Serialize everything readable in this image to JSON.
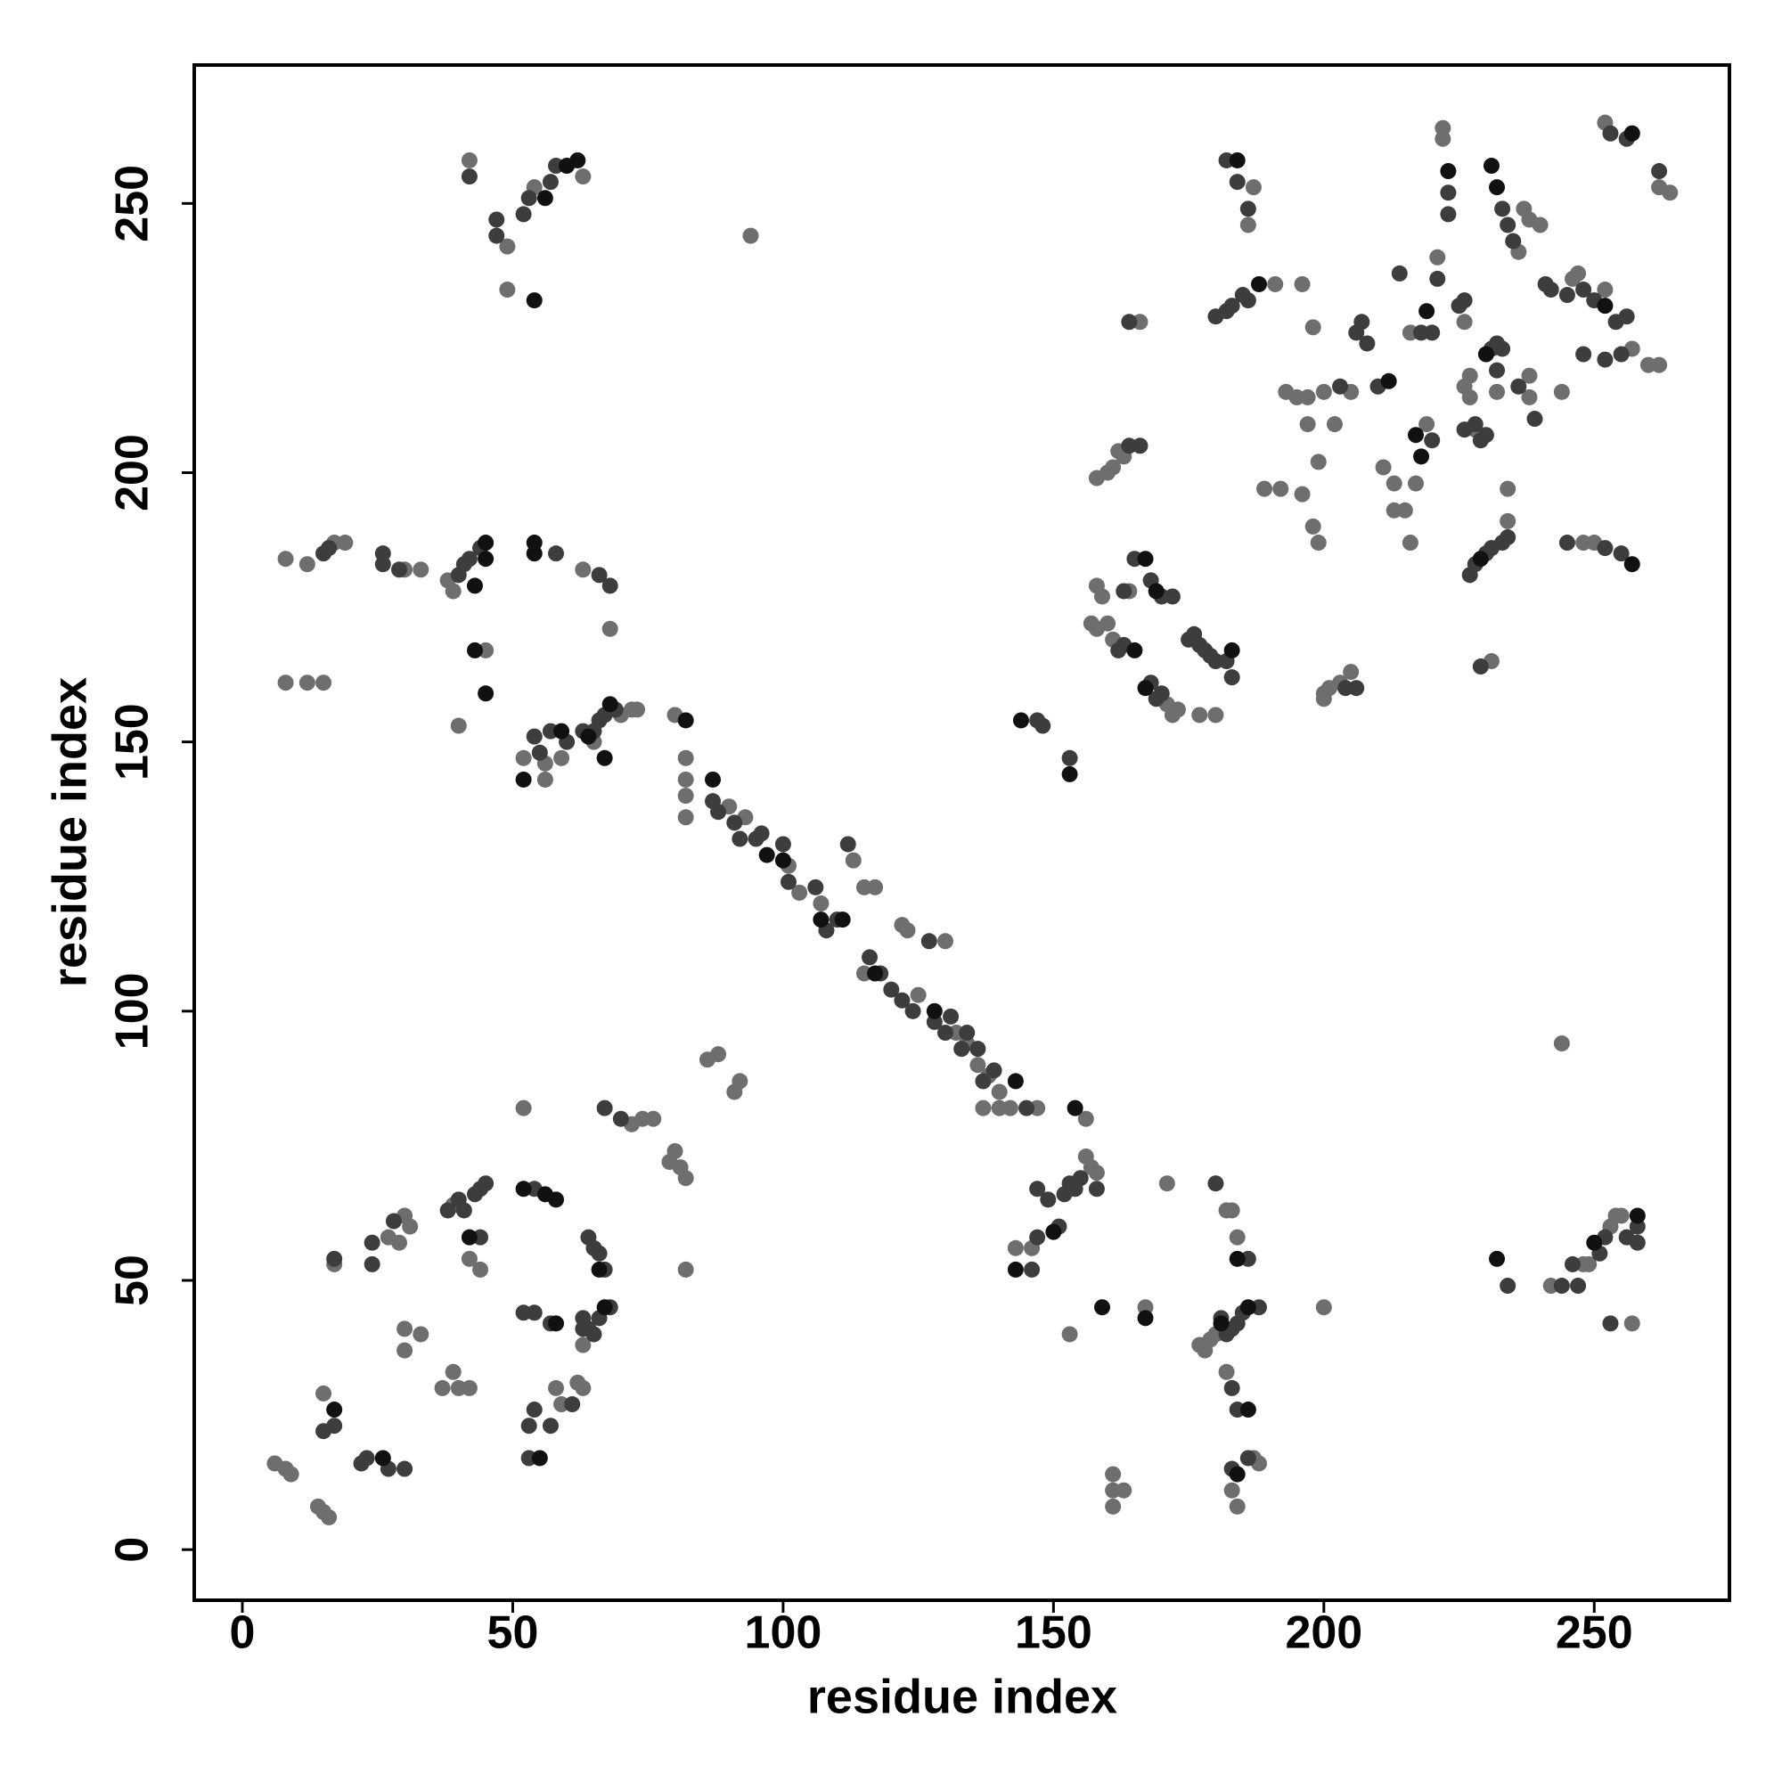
{
  "chart_data": {
    "type": "scatter",
    "xlabel": "residue index",
    "ylabel": "residue index",
    "xlim": [
      -8.9,
      275.0
    ],
    "ylim": [
      -9.4,
      275.7
    ],
    "xticks": [
      0,
      50,
      100,
      150,
      200,
      250
    ],
    "yticks": [
      0,
      50,
      100,
      150,
      200,
      250
    ],
    "series": [
      {
        "color": "#6e6e6e",
        "x": [
          42,
          49,
          54,
          63,
          49,
          94,
          8,
          12,
          17,
          19,
          30,
          33,
          38,
          39,
          63,
          68,
          45,
          40,
          8,
          12,
          15,
          52,
          56,
          56,
          59,
          65,
          70,
          72,
          73,
          80,
          82,
          82,
          82,
          82,
          90,
          93,
          101,
          103,
          107,
          113,
          115,
          117,
          115,
          122,
          123,
          125,
          130,
          132,
          134,
          136,
          137,
          138,
          140,
          140,
          142,
          147,
          156,
          6,
          8,
          9,
          14,
          15,
          16,
          15,
          17,
          27,
          29,
          30,
          30,
          30,
          31,
          33,
          37,
          39,
          40,
          42,
          39,
          42,
          44,
          52,
          58,
          59,
          62,
          63,
          63,
          72,
          74,
          76,
          79,
          80,
          81,
          82,
          82,
          86,
          88,
          91,
          92,
          143,
          146,
          156,
          157,
          158,
          153,
          161,
          161,
          161,
          163,
          167,
          171,
          177,
          178,
          179,
          180,
          182,
          183,
          182,
          184,
          183,
          184,
          187,
          188,
          200,
          242,
          248,
          249,
          253,
          254,
          255,
          257,
          244,
          158,
          159,
          157,
          158,
          160,
          161,
          171,
          172,
          173,
          177,
          180,
          164,
          162,
          163,
          160,
          158,
          161,
          166,
          200,
          200,
          201,
          203,
          205,
          186,
          187,
          191,
          196,
          193,
          195,
          197,
          200,
          197,
          202,
          199,
          198,
          199,
          196,
          205,
          211,
          213,
          213,
          215,
          216,
          217,
          219,
          221,
          222,
          222,
          226,
          226,
          227,
          227,
          228,
          232,
          236,
          237,
          238,
          240,
          246,
          247,
          244,
          238,
          238,
          231,
          234,
          234,
          252,
          257,
          260,
          262,
          250,
          248,
          252,
          257,
          262,
          264,
          198,
          189,
          192,
          216
        ],
        "y": [
          258,
          242,
          253,
          255,
          234,
          244,
          184,
          183,
          187,
          187,
          182,
          182,
          180,
          178,
          182,
          171,
          167,
          153,
          161,
          161,
          161,
          147,
          146,
          143,
          147,
          150,
          155,
          156,
          156,
          155,
          147,
          143,
          140,
          136,
          138,
          136,
          127,
          122,
          120,
          128,
          123,
          123,
          107,
          116,
          115,
          103,
          113,
          96,
          94,
          90,
          82,
          88,
          85,
          82,
          82,
          82,
          80,
          16,
          15,
          14,
          8,
          7,
          6,
          29,
          53,
          58,
          57,
          62,
          41,
          37,
          60,
          40,
          30,
          33,
          30,
          30,
          64,
          54,
          52,
          82,
          30,
          27,
          31,
          30,
          38,
          79,
          80,
          80,
          72,
          74,
          71,
          69,
          52,
          91,
          92,
          85,
          87,
          56,
          56,
          73,
          71,
          70,
          40,
          14,
          11,
          8,
          11,
          45,
          68,
          38,
          37,
          39,
          40,
          63,
          63,
          33,
          58,
          11,
          8,
          17,
          16,
          45,
          49,
          53,
          53,
          60,
          62,
          62,
          42,
          94,
          179,
          177,
          172,
          171,
          172,
          169,
          157,
          155,
          156,
          155,
          155,
          178,
          204,
          203,
          200,
          199,
          201,
          228,
          158,
          159,
          160,
          161,
          163,
          246,
          253,
          235,
          235,
          215,
          214,
          214,
          215,
          209,
          209,
          202,
          190,
          187,
          196,
          215,
          201,
          198,
          193,
          193,
          187,
          198,
          209,
          240,
          264,
          262,
          228,
          216,
          218,
          214,
          208,
          215,
          241,
          249,
          247,
          246,
          236,
          237,
          215,
          218,
          214,
          165,
          191,
          197,
          234,
          223,
          220,
          220,
          187,
          187,
          265,
          263,
          253,
          252,
          227,
          197,
          197,
          226
        ]
      },
      {
        "color": "#3d3d3d",
        "x": [
          42,
          47,
          47,
          52,
          53,
          57,
          58,
          15,
          16,
          26,
          26,
          29,
          40,
          41,
          42,
          44,
          58,
          66,
          68,
          54,
          55,
          57,
          60,
          63,
          65,
          66,
          67,
          69,
          87,
          88,
          91,
          92,
          95,
          96,
          100,
          101,
          106,
          108,
          110,
          112,
          116,
          118,
          120,
          122,
          124,
          127,
          128,
          130,
          131,
          133,
          134,
          136,
          137,
          139,
          145,
          15,
          17,
          17,
          22,
          23,
          24,
          24,
          27,
          28,
          30,
          38,
          40,
          41,
          43,
          44,
          45,
          44,
          54,
          52,
          54,
          57,
          53,
          54,
          57,
          61,
          53,
          63,
          63,
          64,
          65,
          66,
          68,
          64,
          65,
          67,
          66,
          70,
          67,
          146,
          147,
          147,
          149,
          151,
          152,
          153,
          154,
          155,
          158,
          180,
          181,
          182,
          183,
          184,
          185,
          188,
          183,
          184,
          186,
          183,
          186,
          234,
          244,
          246,
          247,
          251,
          252,
          256,
          258,
          258,
          253,
          147,
          148,
          153,
          162,
          163,
          163,
          165,
          168,
          170,
          172,
          168,
          169,
          170,
          175,
          176,
          177,
          178,
          179,
          180,
          182,
          183,
          164,
          166,
          164,
          206,
          204,
          182,
          180,
          182,
          183,
          185,
          186,
          186,
          184,
          203,
          206,
          208,
          207,
          210,
          214,
          220,
          218,
          220,
          221,
          223,
          223,
          225,
          226,
          226,
          228,
          229,
          230,
          231,
          232,
          233,
          232,
          233,
          234,
          235,
          241,
          242,
          245,
          248,
          239,
          236,
          234,
          233,
          231,
          230,
          228,
          227,
          229,
          250,
          254,
          256,
          248,
          252,
          255,
          252,
          255,
          245,
          253,
          256,
          262
        ],
        "y": [
          255,
          247,
          244,
          248,
          251,
          254,
          257,
          185,
          186,
          185,
          183,
          182,
          181,
          183,
          184,
          186,
          185,
          181,
          179,
          151,
          148,
          152,
          150,
          152,
          152,
          154,
          155,
          156,
          139,
          137,
          135,
          132,
          132,
          133,
          131,
          124,
          123,
          115,
          117,
          131,
          110,
          107,
          104,
          102,
          100,
          113,
          98,
          96,
          99,
          93,
          96,
          93,
          87,
          89,
          82,
          22,
          23,
          54,
          16,
          17,
          57,
          53,
          15,
          61,
          15,
          63,
          65,
          63,
          66,
          67,
          68,
          58,
          67,
          44,
          44,
          42,
          23,
          26,
          23,
          27,
          17,
          43,
          41,
          41,
          40,
          43,
          45,
          58,
          56,
          52,
          55,
          80,
          82,
          52,
          58,
          67,
          65,
          60,
          66,
          68,
          67,
          69,
          67,
          68,
          43,
          40,
          41,
          42,
          44,
          45,
          30,
          26,
          54,
          15,
          17,
          49,
          49,
          53,
          49,
          55,
          58,
          58,
          57,
          60,
          42,
          154,
          153,
          147,
          167,
          168,
          178,
          184,
          180,
          177,
          177,
          161,
          158,
          159,
          169,
          170,
          168,
          167,
          166,
          165,
          165,
          162,
          205,
          205,
          228,
          160,
          160,
          258,
          229,
          230,
          231,
          233,
          232,
          249,
          254,
          216,
          226,
          224,
          228,
          216,
          237,
          206,
          226,
          226,
          236,
          252,
          248,
          231,
          232,
          208,
          209,
          206,
          207,
          223,
          224,
          223,
          219,
          249,
          246,
          243,
          235,
          234,
          233,
          234,
          210,
          216,
          188,
          187,
          186,
          185,
          183,
          181,
          164,
          232,
          228,
          229,
          222,
          221,
          222,
          186,
          185,
          187,
          263,
          262,
          256
        ]
      },
      {
        "color": "#111111",
        "x": [
          62,
          56,
          54,
          60,
          45,
          45,
          43,
          54,
          54,
          43,
          45,
          52,
          59,
          64,
          67,
          68,
          82,
          87,
          97,
          100,
          107,
          111,
          117,
          128,
          143,
          154,
          52,
          56,
          58,
          42,
          58,
          55,
          17,
          26,
          66,
          67,
          159,
          167,
          181,
          186,
          184,
          186,
          184,
          150,
          143,
          232,
          250,
          258,
          144,
          153,
          167,
          169,
          165,
          167,
          183,
          184,
          188,
          212,
          217,
          219,
          223,
          231,
          232,
          230,
          252,
          257,
          229,
          218,
          257
        ],
        "y": [
          258,
          251,
          232,
          257,
          184,
          187,
          179,
          187,
          185,
          167,
          159,
          143,
          152,
          151,
          147,
          157,
          154,
          143,
          129,
          128,
          117,
          117,
          107,
          100,
          87,
          82,
          67,
          66,
          65,
          58,
          42,
          17,
          26,
          17,
          52,
          45,
          45,
          43,
          42,
          45,
          54,
          26,
          14,
          59,
          52,
          54,
          57,
          62,
          154,
          144,
          184,
          178,
          167,
          160,
          167,
          258,
          235,
          217,
          207,
          230,
          256,
          257,
          253,
          222,
          231,
          183,
          184,
          203,
          263
        ]
      }
    ]
  }
}
